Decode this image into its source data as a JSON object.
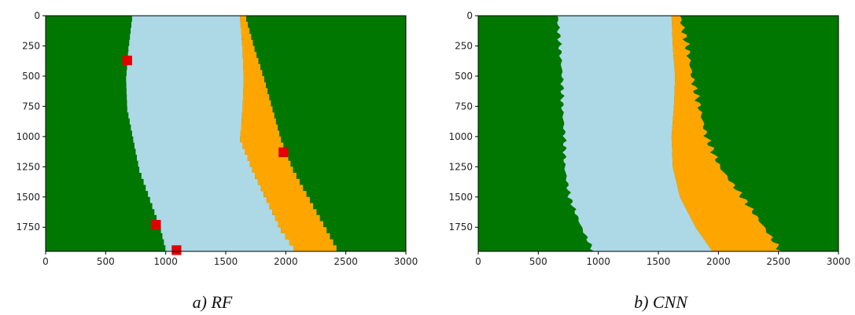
{
  "figure": {
    "panels": [
      {
        "id": "rf",
        "caption": "a) RF"
      },
      {
        "id": "cnn",
        "caption": "b) CNN"
      }
    ]
  },
  "chart_data": [
    {
      "type": "heatmap",
      "caption": "a) RF",
      "x_ticks": [
        0,
        500,
        1000,
        1500,
        2000,
        2500,
        3000
      ],
      "y_ticks": [
        0,
        250,
        500,
        750,
        1000,
        1250,
        1500,
        1750
      ],
      "xlim": [
        0,
        3000
      ],
      "ylim": [
        1950,
        0
      ],
      "y_inverted": true,
      "class_colors": {
        "land": "#007700",
        "water": "#add8e6",
        "sand": "#ffa500",
        "error": "#e00000"
      },
      "water_extent": [
        {
          "y": 0,
          "x_start": 720,
          "x_end": 1620
        },
        {
          "y": 250,
          "x_start": 690,
          "x_end": 1640
        },
        {
          "y": 500,
          "x_start": 670,
          "x_end": 1650
        },
        {
          "y": 750,
          "x_start": 680,
          "x_end": 1640
        },
        {
          "y": 1000,
          "x_start": 730,
          "x_end": 1620
        },
        {
          "y": 1250,
          "x_start": 780,
          "x_end": 1720
        },
        {
          "y": 1500,
          "x_start": 870,
          "x_end": 1840
        },
        {
          "y": 1750,
          "x_start": 960,
          "x_end": 1960
        },
        {
          "y": 1950,
          "x_start": 1010,
          "x_end": 2100
        }
      ],
      "sand_extent": [
        {
          "y": 0,
          "x_start": 1620,
          "x_end": 1670
        },
        {
          "y": 250,
          "x_start": 1640,
          "x_end": 1740
        },
        {
          "y": 500,
          "x_start": 1650,
          "x_end": 1820
        },
        {
          "y": 750,
          "x_start": 1640,
          "x_end": 1890
        },
        {
          "y": 1000,
          "x_start": 1620,
          "x_end": 1960
        },
        {
          "y": 1250,
          "x_start": 1720,
          "x_end": 2060
        },
        {
          "y": 1500,
          "x_start": 1840,
          "x_end": 2200
        },
        {
          "y": 1750,
          "x_start": 1960,
          "x_end": 2340
        },
        {
          "y": 1950,
          "x_start": 2100,
          "x_end": 2450
        }
      ],
      "error_pixels": [
        {
          "x": 680,
          "y": 370
        },
        {
          "x": 1980,
          "y": 1130
        },
        {
          "x": 920,
          "y": 1730
        },
        {
          "x": 1090,
          "y": 1940
        }
      ]
    },
    {
      "type": "heatmap",
      "caption": "b) CNN",
      "x_ticks": [
        0,
        500,
        1000,
        1500,
        2000,
        2500,
        3000
      ],
      "y_ticks": [
        0,
        250,
        500,
        750,
        1000,
        1250,
        1500,
        1750
      ],
      "xlim": [
        0,
        3000
      ],
      "ylim": [
        1950,
        0
      ],
      "y_inverted": true,
      "class_colors": {
        "land": "#007700",
        "water": "#add8e6",
        "sand": "#ffa500"
      },
      "water_extent": [
        {
          "y": 0,
          "x_start": 660,
          "x_end": 1610
        },
        {
          "y": 250,
          "x_start": 680,
          "x_end": 1620
        },
        {
          "y": 500,
          "x_start": 700,
          "x_end": 1640
        },
        {
          "y": 750,
          "x_start": 700,
          "x_end": 1630
        },
        {
          "y": 1000,
          "x_start": 720,
          "x_end": 1610
        },
        {
          "y": 1250,
          "x_start": 720,
          "x_end": 1620
        },
        {
          "y": 1500,
          "x_start": 760,
          "x_end": 1680
        },
        {
          "y": 1750,
          "x_start": 860,
          "x_end": 1810
        },
        {
          "y": 1950,
          "x_start": 960,
          "x_end": 1950
        }
      ],
      "sand_extent": [
        {
          "y": 0,
          "x_start": 1610,
          "x_end": 1680
        },
        {
          "y": 250,
          "x_start": 1620,
          "x_end": 1740
        },
        {
          "y": 500,
          "x_start": 1640,
          "x_end": 1780
        },
        {
          "y": 750,
          "x_start": 1630,
          "x_end": 1840
        },
        {
          "y": 1000,
          "x_start": 1610,
          "x_end": 1900
        },
        {
          "y": 1250,
          "x_start": 1620,
          "x_end": 2010
        },
        {
          "y": 1500,
          "x_start": 1680,
          "x_end": 2200
        },
        {
          "y": 1750,
          "x_start": 1810,
          "x_end": 2380
        },
        {
          "y": 1950,
          "x_start": 1950,
          "x_end": 2520
        }
      ]
    }
  ]
}
